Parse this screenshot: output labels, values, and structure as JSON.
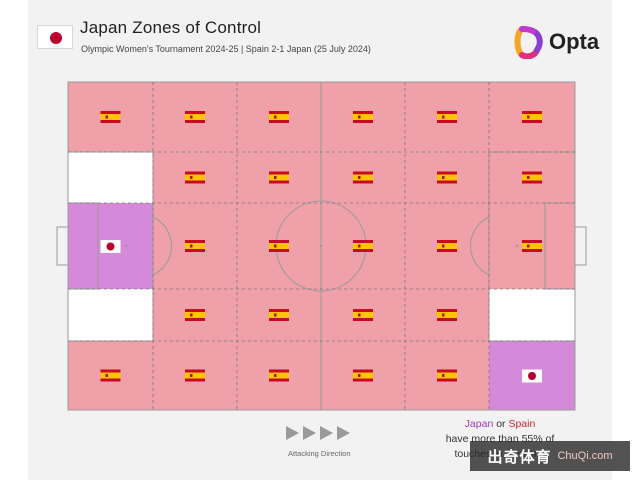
{
  "header": {
    "title": "Japan Zones of Control",
    "subtitle": "Olympic Women's Tournament 2024-25 | Spain 2-1 Japan (25 July 2024)",
    "team_flag_icon": "japan-flag-icon"
  },
  "brand": {
    "name": "Opta",
    "logo_icon": "opta-logo-icon"
  },
  "colors": {
    "spain_zone": "#f0a0a8",
    "japan_zone": "#d48ad8",
    "neutral_zone": "#ffffff",
    "japan_text": "#9b3db8",
    "spain_text": "#d6233d"
  },
  "grid": {
    "note_rows_top_to_bottom": "5 rows x 6 columns",
    "zones": [
      [
        "spain",
        "spain",
        "spain",
        "spain",
        "spain",
        "spain"
      ],
      [
        "none",
        "spain",
        "spain",
        "spain",
        "spain",
        "spain"
      ],
      [
        "japan",
        "spain",
        "spain",
        "spain",
        "spain",
        "spain"
      ],
      [
        "none",
        "spain",
        "spain",
        "spain",
        "spain",
        "none"
      ],
      [
        "spain",
        "spain",
        "spain",
        "spain",
        "spain",
        "japan"
      ]
    ]
  },
  "footer": {
    "attacking_direction": "Attacking Direction",
    "arrow_icon": "play-arrow-icon"
  },
  "legend": {
    "japan": "Japan",
    "or": "or",
    "spain": "Spain",
    "line2": "have more than 55% of",
    "line3": "touches in the zone"
  },
  "watermark": {
    "main": "出奇体育",
    "url": "ChuQi.com"
  }
}
